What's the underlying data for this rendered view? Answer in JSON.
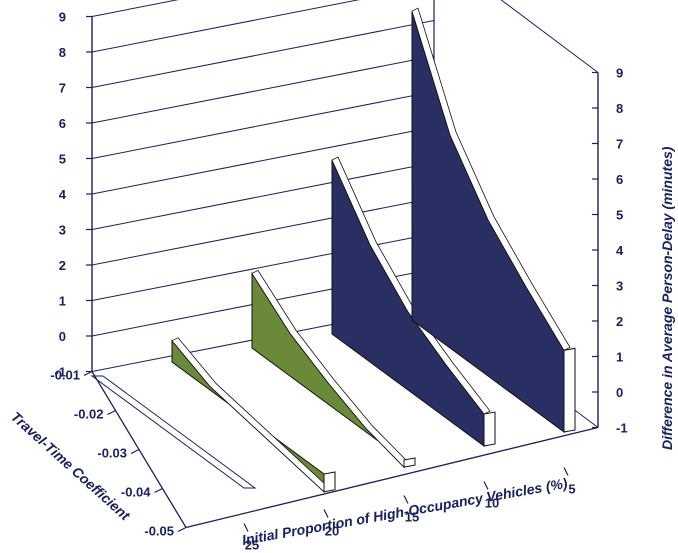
{
  "chart_data": {
    "type": "3d-ribbon",
    "title": "",
    "left_z_ticks": [
      "9",
      "8",
      "7",
      "6",
      "5",
      "4",
      "3",
      "2",
      "1",
      "0",
      "-1"
    ],
    "right_z_ticks": [
      "9",
      "8",
      "7",
      "6",
      "5",
      "4",
      "3",
      "2",
      "1",
      "0",
      "-1"
    ],
    "right_axis_label": "Difference in Average Person-Delay (minutes)",
    "y_axis_label": "Travel-Time Coefficient",
    "y_ticks": [
      "-0.01",
      "-0.02",
      "-0.03",
      "-0.04",
      "-0.05"
    ],
    "x_axis_label": "Initial Proportion of High-Occupancy Vehicles (%)",
    "x_ticks": [
      "25",
      "20",
      "15",
      "10",
      "5"
    ],
    "zlim": [
      -1,
      9
    ],
    "ylim": [
      -0.05,
      -0.01
    ],
    "colors": {
      "ribbon": "#2a2f63",
      "negative": "#6a8a3a",
      "text": "#1a2060",
      "grid": "#1a2060"
    },
    "series": [
      {
        "name": "25",
        "travel_time_coefficient": [
          -0.01,
          -0.02,
          -0.03,
          -0.04,
          -0.05
        ],
        "values": [
          0.0,
          0.0,
          0.0,
          0.0,
          0.0
        ]
      },
      {
        "name": "20",
        "travel_time_coefficient": [
          -0.01,
          -0.02,
          -0.03,
          -0.04,
          -0.05
        ],
        "values": [
          0.6,
          0.1,
          -0.1,
          -0.3,
          -0.5
        ]
      },
      {
        "name": "15",
        "travel_time_coefficient": [
          -0.01,
          -0.02,
          -0.03,
          -0.04,
          -0.05
        ],
        "values": [
          2.1,
          1.2,
          0.6,
          0.1,
          -0.2
        ]
      },
      {
        "name": "10",
        "travel_time_coefficient": [
          -0.01,
          -0.02,
          -0.03,
          -0.04,
          -0.05
        ],
        "values": [
          4.9,
          3.3,
          2.2,
          1.5,
          0.9
        ]
      },
      {
        "name": "5",
        "travel_time_coefficient": [
          -0.01,
          -0.02,
          -0.03,
          -0.04,
          -0.05
        ],
        "values": [
          8.7,
          6.0,
          4.4,
          3.3,
          2.3
        ]
      }
    ]
  }
}
